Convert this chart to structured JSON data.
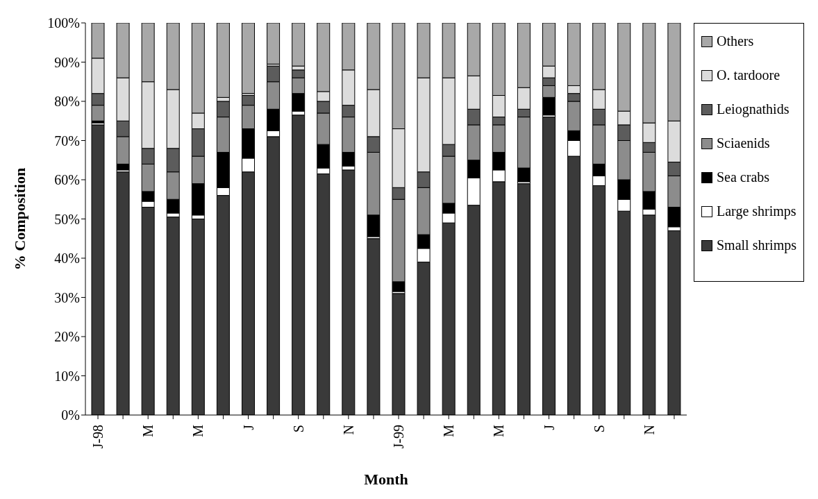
{
  "chart_data": {
    "type": "bar",
    "stacked": true,
    "xlabel": "Month",
    "ylabel": "% Composition",
    "categories": [
      "J-98",
      null,
      "M",
      null,
      "M",
      null,
      "J",
      null,
      "S",
      null,
      "N",
      null,
      "J-99",
      null,
      "M",
      null,
      "M",
      null,
      "J",
      null,
      "S",
      null,
      "N",
      null
    ],
    "ylim": [
      0,
      100
    ],
    "yticks": [
      {
        "value": 0,
        "label": "0%"
      },
      {
        "value": 10,
        "label": "10%"
      },
      {
        "value": 20,
        "label": "20%"
      },
      {
        "value": 30,
        "label": "30%"
      },
      {
        "value": 40,
        "label": "40%"
      },
      {
        "value": 50,
        "label": "50%"
      },
      {
        "value": 60,
        "label": "60%"
      },
      {
        "value": 70,
        "label": "70%"
      },
      {
        "value": 80,
        "label": "80%"
      },
      {
        "value": 90,
        "label": "90%"
      },
      {
        "value": 100,
        "label": "100%"
      }
    ],
    "legend": "right",
    "series": [
      {
        "name": "Small shrimps",
        "color": "#3a3a3a",
        "values": [
          74,
          62,
          53,
          50.5,
          50,
          56,
          62,
          71,
          76.5,
          61.5,
          62.5,
          45,
          31,
          39,
          49,
          53.5,
          59.5,
          59,
          76,
          66,
          58.5,
          52,
          51,
          47
        ]
      },
      {
        "name": "Large shrimps",
        "color": "#ffffff",
        "values": [
          0.5,
          0.5,
          1.5,
          1,
          1,
          2,
          3.5,
          1.5,
          1,
          1.5,
          1,
          0.5,
          0.5,
          3.5,
          2.5,
          7,
          3,
          0.5,
          0.5,
          4,
          2.5,
          3,
          1.5,
          1
        ]
      },
      {
        "name": "Sea crabs",
        "color": "#000000",
        "values": [
          0.5,
          1.5,
          2.5,
          3.5,
          8,
          9,
          7.5,
          5.5,
          4.5,
          6,
          3.5,
          5.5,
          2.5,
          3.5,
          2.5,
          4.5,
          4.5,
          3.5,
          4.5,
          2.5,
          3,
          5,
          4.5,
          5
        ]
      },
      {
        "name": "Sciaenids",
        "color": "#8c8c8c",
        "values": [
          4,
          7,
          7,
          7,
          7,
          9,
          6,
          7,
          4,
          8,
          9,
          16,
          21,
          12,
          12,
          9,
          7,
          13,
          3,
          7.5,
          10,
          10,
          10,
          8
        ]
      },
      {
        "name": "Leiognathids",
        "color": "#5c5c5c",
        "values": [
          3,
          4,
          4,
          6,
          7,
          4,
          2.5,
          4,
          2,
          3,
          3,
          4,
          3,
          4,
          3,
          4,
          2,
          2,
          2,
          2,
          4,
          4,
          2.5,
          3.5
        ]
      },
      {
        "name": "O. tardoore",
        "color": "#dcdcdc",
        "values": [
          9,
          11,
          17,
          15,
          4,
          1,
          0.5,
          0.5,
          1,
          2.5,
          9,
          12,
          15,
          24,
          17,
          8.5,
          5.5,
          5.5,
          3,
          2,
          5,
          3.5,
          5,
          10.5
        ]
      },
      {
        "name": "Others",
        "color": "#a8a8a8",
        "values": [
          9,
          14,
          15,
          17,
          23,
          19,
          18,
          10.5,
          11,
          17.5,
          12,
          17,
          27,
          14,
          14,
          13.5,
          18.5,
          16.5,
          11,
          16,
          17,
          22.5,
          25.5,
          25
        ]
      }
    ]
  }
}
